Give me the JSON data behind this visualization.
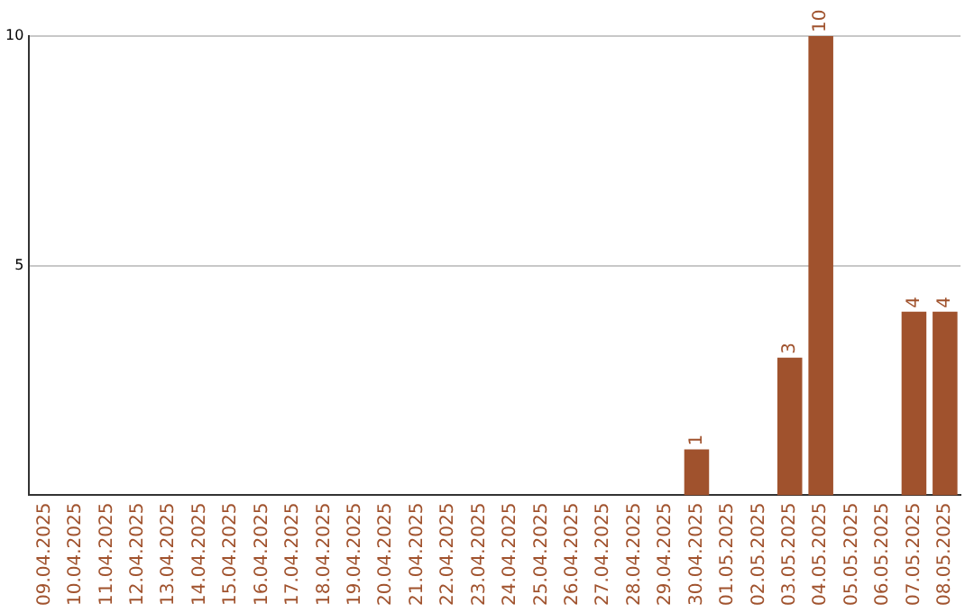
{
  "chart_data": {
    "type": "bar",
    "categories": [
      "09.04.2025",
      "10.04.2025",
      "11.04.2025",
      "12.04.2025",
      "13.04.2025",
      "14.04.2025",
      "15.04.2025",
      "16.04.2025",
      "17.04.2025",
      "18.04.2025",
      "19.04.2025",
      "20.04.2025",
      "21.04.2025",
      "22.04.2025",
      "23.04.2025",
      "24.04.2025",
      "25.04.2025",
      "26.04.2025",
      "27.04.2025",
      "28.04.2025",
      "29.04.2025",
      "30.04.2025",
      "01.05.2025",
      "02.05.2025",
      "03.05.2025",
      "04.05.2025",
      "05.05.2025",
      "06.05.2025",
      "07.05.2025",
      "08.05.2025"
    ],
    "values": [
      0,
      0,
      0,
      0,
      0,
      0,
      0,
      0,
      0,
      0,
      0,
      0,
      0,
      0,
      0,
      0,
      0,
      0,
      0,
      0,
      0,
      1,
      0,
      0,
      3,
      10,
      0,
      0,
      4,
      4
    ],
    "value_labels": [
      null,
      null,
      null,
      null,
      null,
      null,
      null,
      null,
      null,
      null,
      null,
      null,
      null,
      null,
      null,
      null,
      null,
      null,
      null,
      null,
      null,
      "1",
      null,
      null,
      "3",
      "10",
      null,
      null,
      "4",
      "4"
    ],
    "color": "#a0522d",
    "ylim": [
      0,
      10
    ],
    "yticks": [
      5,
      10
    ],
    "grid": "y",
    "legend": false
  }
}
